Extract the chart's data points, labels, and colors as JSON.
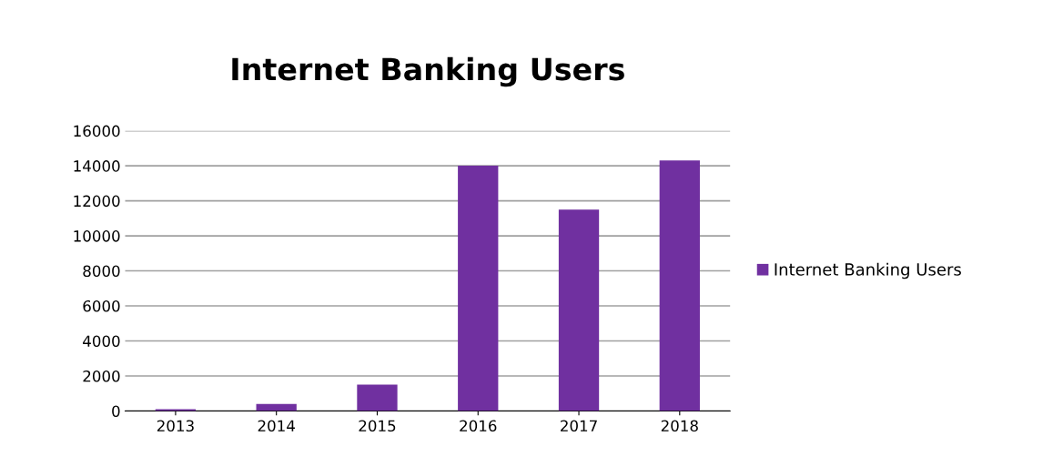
{
  "chart_data": {
    "type": "bar",
    "title": "Internet Banking Users",
    "categories": [
      "2013",
      "2014",
      "2015",
      "2016",
      "2017",
      "2018"
    ],
    "series": [
      {
        "name": "Internet Banking Users",
        "color": "#7030a0",
        "values": [
          100,
          400,
          1500,
          14000,
          11500,
          14300
        ]
      }
    ],
    "ylim": [
      0,
      16000
    ],
    "yticks": [
      0,
      2000,
      4000,
      6000,
      8000,
      10000,
      12000,
      14000,
      16000
    ],
    "grid": "y",
    "legend": "right"
  }
}
